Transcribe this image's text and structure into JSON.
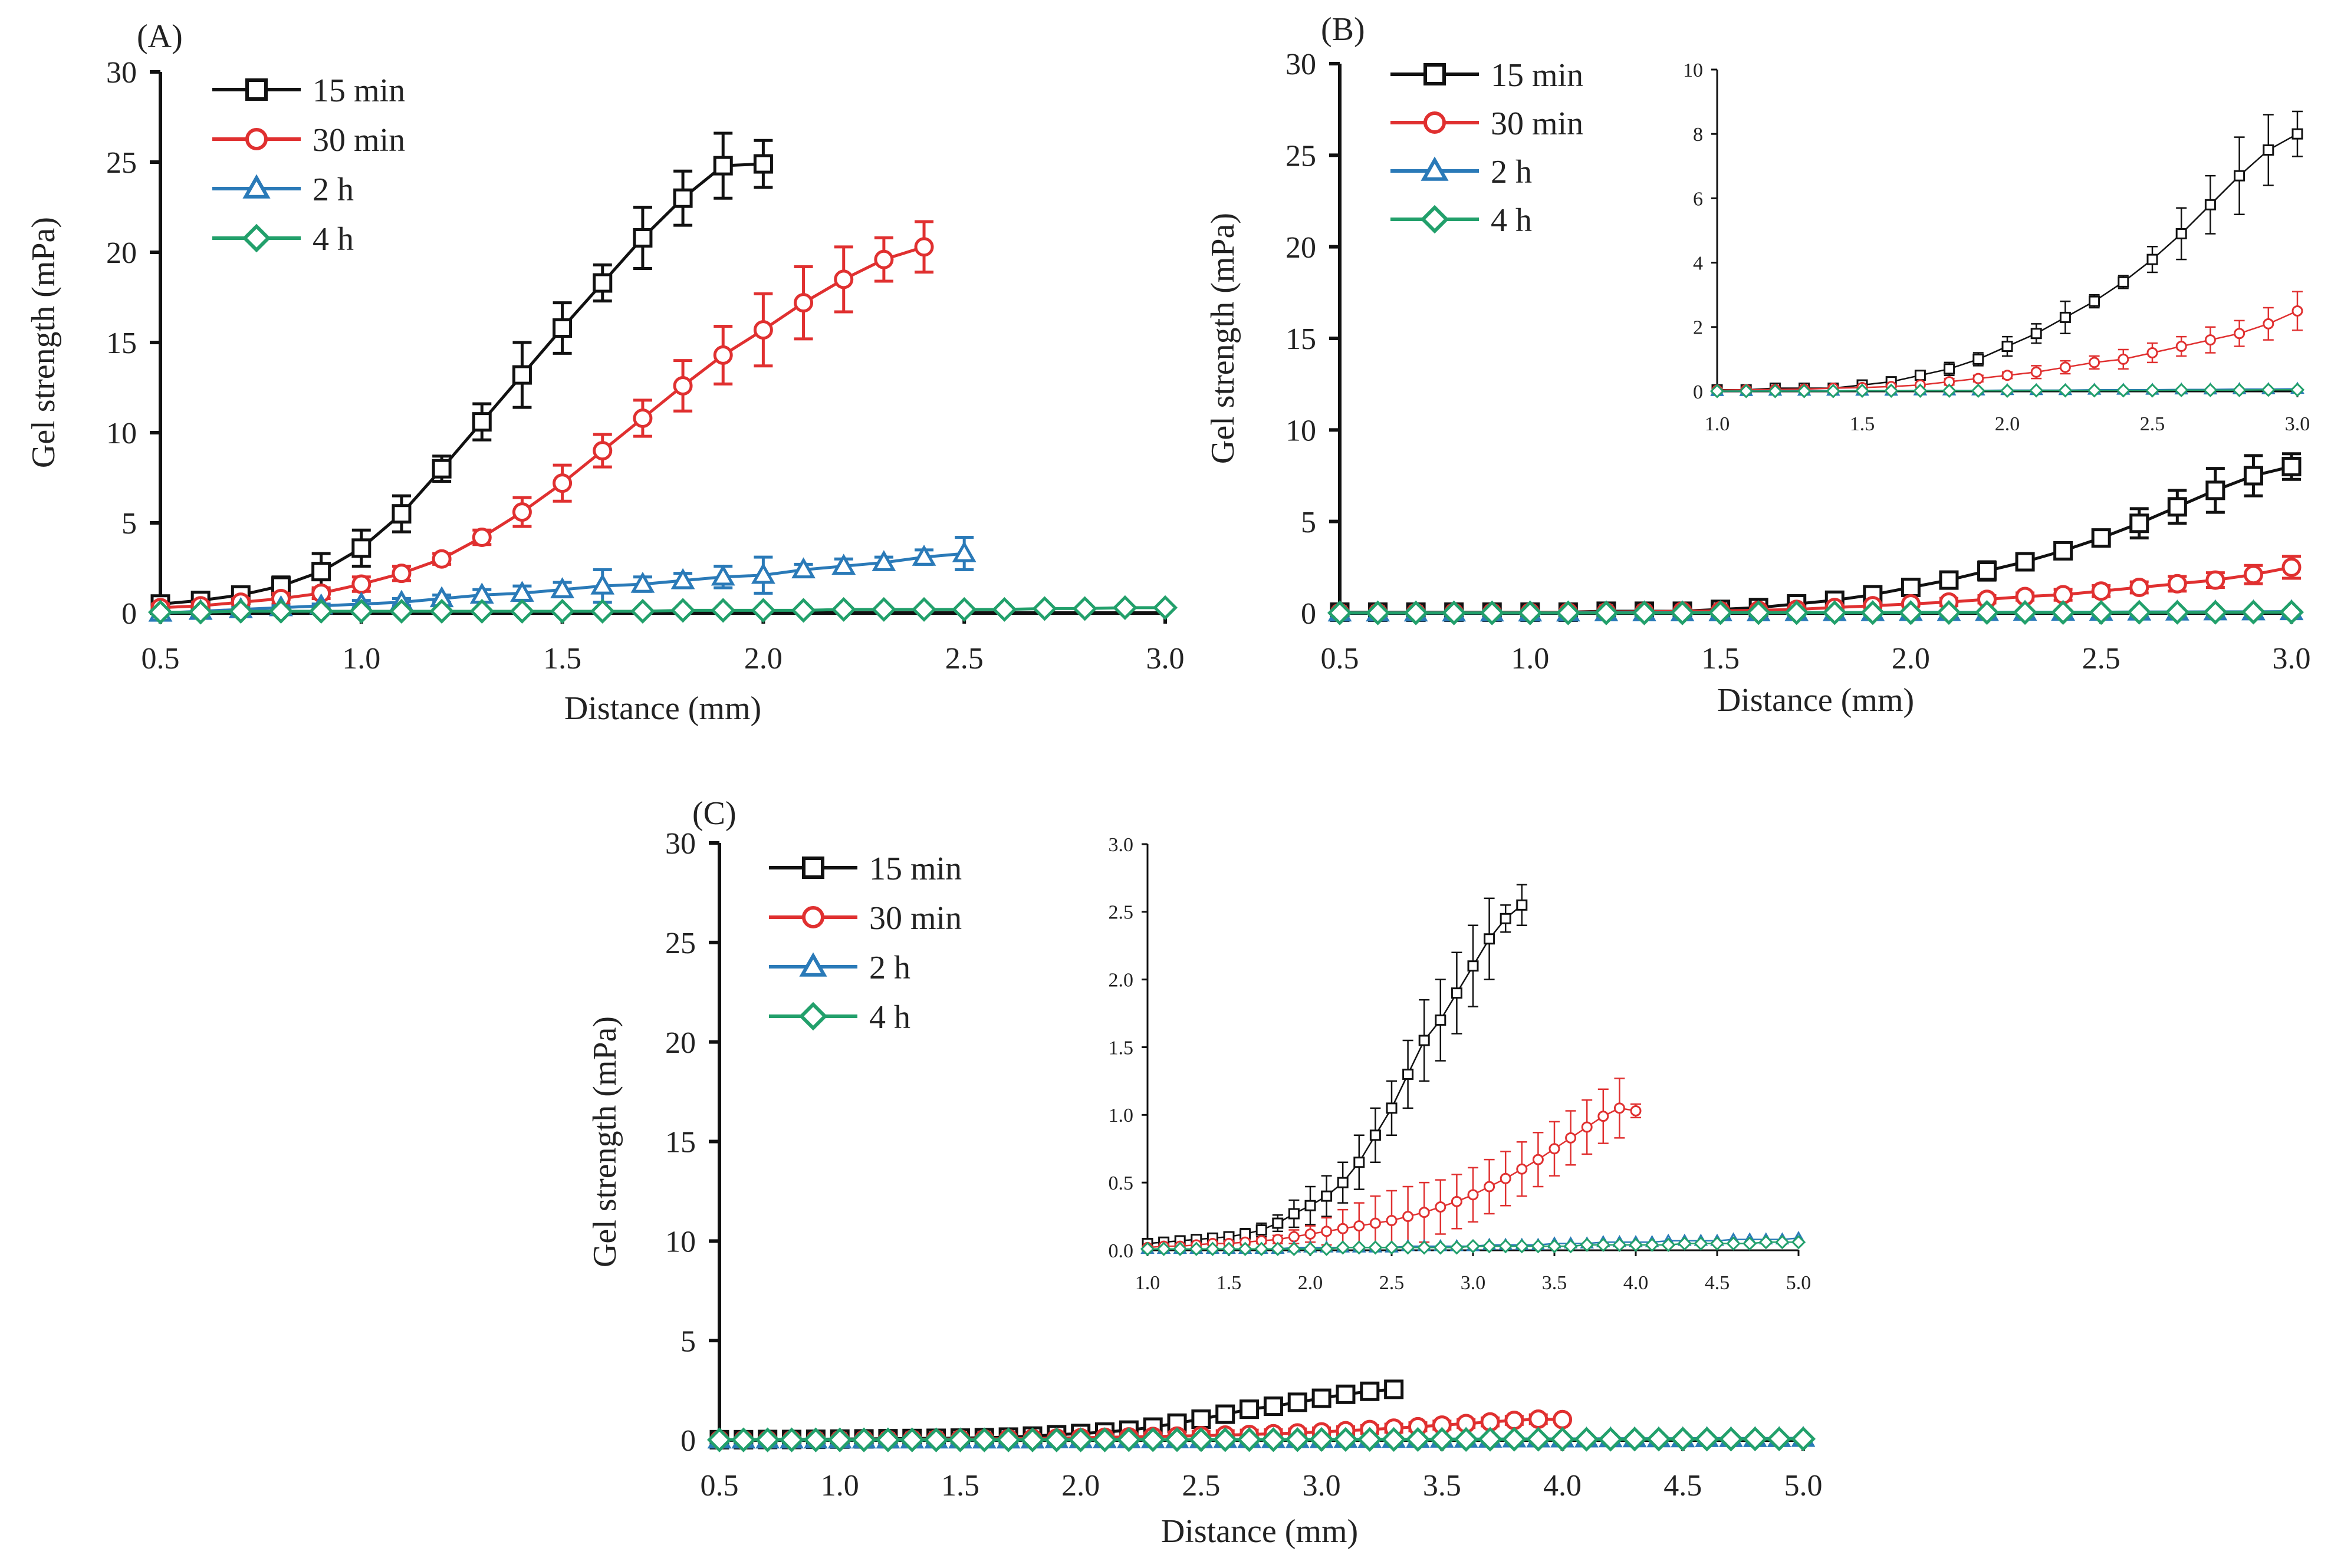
{
  "chart_data": [
    {
      "panel_label": "(A)",
      "type": "line",
      "xlabel": "Distance (mm)",
      "ylabel": "Gel strength (mPa)",
      "xlim": [
        0.5,
        3.0
      ],
      "ylim": [
        0,
        30
      ],
      "x_ticks": [
        "0.5",
        "1.0",
        "1.5",
        "2.0",
        "2.5",
        "3.0"
      ],
      "y_ticks": [
        "0",
        "5",
        "10",
        "15",
        "20",
        "25",
        "30"
      ],
      "legend_position": "top-left",
      "series": [
        {
          "name": "15 min",
          "color": "#111111",
          "marker": "square",
          "x": [
            0.5,
            0.6,
            0.7,
            0.8,
            0.9,
            1.0,
            1.1,
            1.2,
            1.3,
            1.4,
            1.5,
            1.6,
            1.7,
            1.8,
            1.9,
            2.0
          ],
          "y": [
            0.5,
            0.7,
            1.0,
            1.5,
            2.3,
            3.6,
            5.5,
            8.0,
            10.6,
            13.2,
            15.8,
            18.3,
            20.8,
            23.0,
            24.8,
            24.9
          ],
          "err": [
            0.2,
            0.3,
            0.3,
            0.5,
            1.0,
            1.0,
            1.0,
            0.7,
            1.0,
            1.8,
            1.4,
            1.0,
            1.7,
            1.5,
            1.8,
            1.3
          ]
        },
        {
          "name": "30 min",
          "color": "#e03030",
          "marker": "circle",
          "x": [
            0.5,
            0.6,
            0.7,
            0.8,
            0.9,
            1.0,
            1.1,
            1.2,
            1.3,
            1.4,
            1.5,
            1.6,
            1.7,
            1.8,
            1.9,
            2.0,
            2.1,
            2.2,
            2.3,
            2.4
          ],
          "y": [
            0.3,
            0.4,
            0.6,
            0.8,
            1.1,
            1.6,
            2.2,
            3.0,
            4.2,
            5.6,
            7.2,
            9.0,
            10.8,
            12.6,
            14.3,
            15.7,
            17.2,
            18.5,
            19.6,
            20.3
          ],
          "err": [
            0.2,
            0.2,
            0.2,
            0.3,
            0.3,
            0.4,
            0.4,
            0.3,
            0.4,
            0.8,
            1.0,
            0.9,
            1.0,
            1.4,
            1.6,
            2.0,
            2.0,
            1.8,
            1.2,
            1.4
          ]
        },
        {
          "name": "2 h",
          "color": "#2a7ab8",
          "marker": "triangle",
          "x": [
            0.5,
            0.6,
            0.7,
            0.8,
            0.9,
            1.0,
            1.1,
            1.2,
            1.3,
            1.4,
            1.5,
            1.6,
            1.7,
            1.8,
            1.9,
            2.0,
            2.1,
            2.2,
            2.3,
            2.4,
            2.5
          ],
          "y": [
            0.0,
            0.1,
            0.2,
            0.3,
            0.4,
            0.5,
            0.6,
            0.8,
            1.0,
            1.1,
            1.3,
            1.5,
            1.6,
            1.8,
            2.0,
            2.1,
            2.4,
            2.6,
            2.8,
            3.1,
            3.3
          ],
          "err": [
            0.0,
            0.0,
            0.1,
            0.1,
            0.1,
            0.2,
            0.2,
            0.2,
            0.3,
            0.4,
            0.4,
            0.9,
            0.4,
            0.4,
            0.6,
            1.0,
            0.3,
            0.4,
            0.3,
            0.4,
            0.9
          ]
        },
        {
          "name": "4 h",
          "color": "#22a06b",
          "marker": "diamond",
          "x": [
            0.5,
            0.6,
            0.7,
            0.8,
            0.9,
            1.0,
            1.1,
            1.2,
            1.3,
            1.4,
            1.5,
            1.6,
            1.7,
            1.8,
            1.9,
            2.0,
            2.1,
            2.2,
            2.3,
            2.4,
            2.5,
            2.6,
            2.7,
            2.8,
            2.9,
            3.0
          ],
          "y": [
            0.05,
            0.05,
            0.1,
            0.1,
            0.1,
            0.1,
            0.1,
            0.1,
            0.1,
            0.1,
            0.1,
            0.1,
            0.1,
            0.15,
            0.15,
            0.15,
            0.15,
            0.2,
            0.2,
            0.2,
            0.2,
            0.2,
            0.25,
            0.25,
            0.3,
            0.3
          ],
          "err": []
        }
      ]
    },
    {
      "panel_label": "(B)",
      "type": "line",
      "xlabel": "Distance (mm)",
      "ylabel": "Gel strength (mPa)",
      "xlim": [
        0.5,
        3.0
      ],
      "ylim": [
        0,
        30
      ],
      "x_ticks": [
        "0.5",
        "1.0",
        "1.5",
        "2.0",
        "2.5",
        "3.0"
      ],
      "y_ticks": [
        "0",
        "5",
        "10",
        "15",
        "20",
        "25",
        "30"
      ],
      "legend_position": "top-left",
      "series": [
        {
          "name": "15 min",
          "color": "#111111",
          "marker": "square",
          "x": [
            0.5,
            0.6,
            0.7,
            0.8,
            0.9,
            1.0,
            1.1,
            1.2,
            1.3,
            1.4,
            1.5,
            1.6,
            1.7,
            1.8,
            1.9,
            2.0,
            2.1,
            2.2,
            2.3,
            2.4,
            2.5,
            2.6,
            2.7,
            2.8,
            2.9,
            3.0
          ],
          "y": [
            0.05,
            0.05,
            0.05,
            0.05,
            0.05,
            0.05,
            0.05,
            0.1,
            0.1,
            0.1,
            0.2,
            0.3,
            0.5,
            0.7,
            1.0,
            1.4,
            1.8,
            2.3,
            2.8,
            3.4,
            4.1,
            4.9,
            5.8,
            6.7,
            7.5,
            8.0
          ],
          "err": [
            0,
            0,
            0,
            0,
            0,
            0,
            0,
            0,
            0,
            0,
            0,
            0.1,
            0.1,
            0.2,
            0.2,
            0.3,
            0.3,
            0.5,
            0.2,
            0.2,
            0.4,
            0.8,
            0.9,
            1.2,
            1.1,
            0.7
          ]
        },
        {
          "name": "30 min",
          "color": "#e03030",
          "marker": "circle",
          "x": [
            0.5,
            0.6,
            0.7,
            0.8,
            0.9,
            1.0,
            1.1,
            1.2,
            1.3,
            1.4,
            1.5,
            1.6,
            1.7,
            1.8,
            1.9,
            2.0,
            2.1,
            2.2,
            2.3,
            2.4,
            2.5,
            2.6,
            2.7,
            2.8,
            2.9,
            3.0
          ],
          "y": [
            0.02,
            0.02,
            0.02,
            0.03,
            0.03,
            0.04,
            0.05,
            0.06,
            0.07,
            0.1,
            0.12,
            0.15,
            0.2,
            0.3,
            0.4,
            0.5,
            0.6,
            0.75,
            0.9,
            1.0,
            1.2,
            1.4,
            1.6,
            1.8,
            2.1,
            2.5
          ],
          "err": [
            0,
            0,
            0,
            0,
            0,
            0,
            0,
            0,
            0,
            0,
            0,
            0,
            0,
            0.1,
            0.1,
            0.1,
            0.2,
            0.2,
            0.2,
            0.3,
            0.3,
            0.3,
            0.4,
            0.4,
            0.5,
            0.6
          ]
        },
        {
          "name": "2 h",
          "color": "#2a7ab8",
          "marker": "triangle",
          "x": [
            0.5,
            0.6,
            0.7,
            0.8,
            0.9,
            1.0,
            1.1,
            1.2,
            1.3,
            1.4,
            1.5,
            1.6,
            1.7,
            1.8,
            1.9,
            2.0,
            2.1,
            2.2,
            2.3,
            2.4,
            2.5,
            2.6,
            2.7,
            2.8,
            2.9,
            3.0
          ],
          "y": [
            0.01,
            0.01,
            0.01,
            0.01,
            0.01,
            0.01,
            0.01,
            0.02,
            0.02,
            0.02,
            0.02,
            0.02,
            0.03,
            0.03,
            0.03,
            0.04,
            0.04,
            0.04,
            0.05,
            0.05,
            0.05,
            0.06,
            0.06,
            0.07,
            0.07,
            0.08
          ],
          "err": []
        },
        {
          "name": "4 h",
          "color": "#22a06b",
          "marker": "diamond",
          "x": [
            0.5,
            0.6,
            0.7,
            0.8,
            0.9,
            1.0,
            1.1,
            1.2,
            1.3,
            1.4,
            1.5,
            1.6,
            1.7,
            1.8,
            1.9,
            2.0,
            2.1,
            2.2,
            2.3,
            2.4,
            2.5,
            2.6,
            2.7,
            2.8,
            2.9,
            3.0
          ],
          "y": [
            0.01,
            0.01,
            0.01,
            0.01,
            0.01,
            0.01,
            0.01,
            0.01,
            0.01,
            0.01,
            0.02,
            0.02,
            0.02,
            0.02,
            0.02,
            0.02,
            0.03,
            0.03,
            0.03,
            0.03,
            0.03,
            0.04,
            0.04,
            0.04,
            0.05,
            0.05
          ],
          "err": []
        }
      ],
      "inset": {
        "xlim": [
          1.0,
          3.0
        ],
        "ylim": [
          0,
          10
        ],
        "x_ticks": [
          "1.0",
          "1.5",
          "2.0",
          "2.5",
          "3.0"
        ],
        "y_ticks": [
          "0",
          "2",
          "4",
          "6",
          "8",
          "10"
        ]
      }
    },
    {
      "panel_label": "(C)",
      "type": "line",
      "xlabel": "Distance (mm)",
      "ylabel": "Gel strength (mPa)",
      "xlim": [
        0.5,
        5.0
      ],
      "ylim": [
        0,
        30
      ],
      "x_ticks": [
        "0.5",
        "1.0",
        "1.5",
        "2.0",
        "2.5",
        "3.0",
        "3.5",
        "4.0",
        "4.5",
        "5.0"
      ],
      "y_ticks": [
        "0",
        "5",
        "10",
        "15",
        "20",
        "25",
        "30"
      ],
      "legend_position": "top-left",
      "series": [
        {
          "name": "15 min",
          "color": "#111111",
          "marker": "square",
          "x": [
            0.5,
            0.6,
            0.7,
            0.8,
            0.9,
            1.0,
            1.1,
            1.2,
            1.3,
            1.4,
            1.5,
            1.6,
            1.7,
            1.8,
            1.9,
            2.0,
            2.1,
            2.2,
            2.3,
            2.4,
            2.5,
            2.6,
            2.7,
            2.8,
            2.9,
            3.0,
            3.1,
            3.2,
            3.3
          ],
          "y": [
            0.02,
            0.02,
            0.03,
            0.03,
            0.04,
            0.05,
            0.06,
            0.07,
            0.08,
            0.09,
            0.1,
            0.12,
            0.15,
            0.2,
            0.27,
            0.33,
            0.4,
            0.5,
            0.65,
            0.85,
            1.05,
            1.3,
            1.55,
            1.7,
            1.9,
            2.1,
            2.3,
            2.45,
            2.55
          ],
          "err": [
            0,
            0,
            0,
            0,
            0,
            0.02,
            0.03,
            0.03,
            0.03,
            0.03,
            0.03,
            0.04,
            0.05,
            0.06,
            0.1,
            0.14,
            0.15,
            0.15,
            0.2,
            0.2,
            0.2,
            0.25,
            0.3,
            0.3,
            0.3,
            0.3,
            0.3,
            0.1,
            0.15
          ]
        },
        {
          "name": "30 min",
          "color": "#e03030",
          "marker": "circle",
          "x": [
            0.5,
            0.6,
            0.7,
            0.8,
            0.9,
            1.0,
            1.1,
            1.2,
            1.3,
            1.4,
            1.5,
            1.6,
            1.7,
            1.8,
            1.9,
            2.0,
            2.1,
            2.2,
            2.3,
            2.4,
            2.5,
            2.6,
            2.7,
            2.8,
            2.9,
            3.0,
            3.1,
            3.2,
            3.3,
            3.4,
            3.5,
            3.6,
            3.7,
            3.8,
            3.9,
            4.0
          ],
          "y": [
            0.01,
            0.01,
            0.01,
            0.01,
            0.02,
            0.02,
            0.03,
            0.03,
            0.04,
            0.05,
            0.05,
            0.06,
            0.07,
            0.08,
            0.1,
            0.12,
            0.14,
            0.16,
            0.18,
            0.2,
            0.22,
            0.25,
            0.28,
            0.32,
            0.36,
            0.41,
            0.47,
            0.53,
            0.6,
            0.67,
            0.75,
            0.83,
            0.91,
            0.99,
            1.05,
            1.03
          ],
          "err": [
            0,
            0,
            0,
            0,
            0,
            0,
            0,
            0,
            0,
            0,
            0.02,
            0.02,
            0.02,
            0.03,
            0.05,
            0.06,
            0.1,
            0.14,
            0.17,
            0.2,
            0.22,
            0.22,
            0.22,
            0.2,
            0.2,
            0.2,
            0.2,
            0.2,
            0.2,
            0.2,
            0.2,
            0.2,
            0.2,
            0.2,
            0.22,
            0.05
          ]
        },
        {
          "name": "2 h",
          "color": "#2a7ab8",
          "marker": "triangle",
          "x": [
            0.5,
            0.6,
            0.7,
            0.8,
            0.9,
            1.0,
            1.1,
            1.2,
            1.3,
            1.4,
            1.5,
            1.6,
            1.7,
            1.8,
            1.9,
            2.0,
            2.1,
            2.2,
            2.3,
            2.4,
            2.5,
            2.6,
            2.7,
            2.8,
            2.9,
            3.0,
            3.1,
            3.2,
            3.3,
            3.4,
            3.5,
            3.6,
            3.7,
            3.8,
            3.9,
            4.0,
            4.1,
            4.2,
            4.3,
            4.4,
            4.5,
            4.6,
            4.7,
            4.8,
            4.9,
            5.0
          ],
          "y": [
            0.01,
            0.01,
            0.01,
            0.01,
            0.01,
            0.01,
            0.01,
            0.01,
            0.01,
            0.01,
            0.01,
            0.01,
            0.01,
            0.01,
            0.02,
            0.02,
            0.02,
            0.02,
            0.02,
            0.02,
            0.02,
            0.03,
            0.03,
            0.03,
            0.03,
            0.03,
            0.04,
            0.04,
            0.04,
            0.04,
            0.05,
            0.05,
            0.05,
            0.06,
            0.06,
            0.06,
            0.06,
            0.07,
            0.07,
            0.07,
            0.07,
            0.08,
            0.08,
            0.08,
            0.08,
            0.09
          ],
          "err": []
        },
        {
          "name": "4 h",
          "color": "#22a06b",
          "marker": "diamond",
          "x": [
            0.5,
            0.6,
            0.7,
            0.8,
            0.9,
            1.0,
            1.1,
            1.2,
            1.3,
            1.4,
            1.5,
            1.6,
            1.7,
            1.8,
            1.9,
            2.0,
            2.1,
            2.2,
            2.3,
            2.4,
            2.5,
            2.6,
            2.7,
            2.8,
            2.9,
            3.0,
            3.1,
            3.2,
            3.3,
            3.4,
            3.5,
            3.6,
            3.7,
            3.8,
            3.9,
            4.0,
            4.1,
            4.2,
            4.3,
            4.4,
            4.5,
            4.6,
            4.7,
            4.8,
            4.9,
            5.0
          ],
          "y": [
            0.01,
            0.01,
            0.01,
            0.01,
            0.01,
            0.01,
            0.01,
            0.01,
            0.01,
            0.01,
            0.01,
            0.01,
            0.01,
            0.01,
            0.01,
            0.01,
            0.01,
            0.02,
            0.02,
            0.02,
            0.02,
            0.02,
            0.02,
            0.02,
            0.02,
            0.03,
            0.03,
            0.03,
            0.03,
            0.03,
            0.03,
            0.03,
            0.04,
            0.04,
            0.04,
            0.04,
            0.04,
            0.04,
            0.05,
            0.05,
            0.05,
            0.05,
            0.05,
            0.06,
            0.06,
            0.06
          ],
          "err": []
        }
      ],
      "inset": {
        "xlim": [
          1.0,
          5.0
        ],
        "ylim": [
          0,
          3.0
        ],
        "x_ticks": [
          "1.0",
          "1.5",
          "2.0",
          "2.5",
          "3.0",
          "3.5",
          "4.0",
          "4.5",
          "5.0"
        ],
        "y_ticks": [
          "0.0",
          "0.5",
          "1.0",
          "1.5",
          "2.0",
          "2.5",
          "3.0"
        ]
      }
    }
  ]
}
